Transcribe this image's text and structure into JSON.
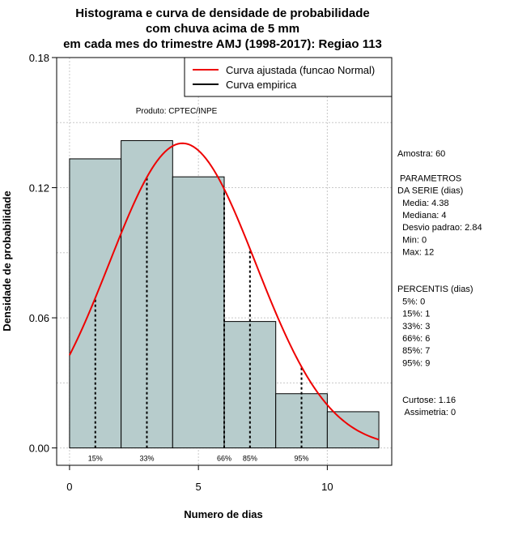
{
  "chart_data": {
    "type": "bar",
    "title_lines": [
      "Histograma e curva de densidade de probabilidade",
      "com chuva acima de 5 mm",
      "em cada mes do trimestre AMJ (1998-2017): Regiao 113"
    ],
    "xlabel": "Numero de dias",
    "ylabel": "Densidade de probabilidade",
    "xlim": [
      -0.5,
      12.5
    ],
    "ylim": [
      -0.008,
      0.18
    ],
    "x_ticks": [
      0,
      5,
      10
    ],
    "y_ticks": [
      0.0,
      0.06,
      0.12,
      0.18
    ],
    "y_tick_labels": [
      "0.00",
      "0.06",
      "0.12",
      "0.18"
    ],
    "grid": true,
    "bins": [
      {
        "x0": 0,
        "x1": 2,
        "density": 0.1333
      },
      {
        "x0": 2,
        "x1": 4,
        "density": 0.1417
      },
      {
        "x0": 4,
        "x1": 6,
        "density": 0.125
      },
      {
        "x0": 6,
        "x1": 8,
        "density": 0.0583
      },
      {
        "x0": 8,
        "x1": 10,
        "density": 0.025
      },
      {
        "x0": 10,
        "x1": 12,
        "density": 0.0167
      }
    ],
    "bar_color": "#b7cccc",
    "normal_curve": {
      "mean": 4.38,
      "sd": 2.84,
      "x_range": [
        0,
        12
      ],
      "color": "#ee0000"
    },
    "percentile_lines": [
      {
        "label": "15%",
        "x": 1
      },
      {
        "label": "33%",
        "x": 3
      },
      {
        "label": "66%",
        "x": 6
      },
      {
        "label": "85%",
        "x": 7
      },
      {
        "label": "95%",
        "x": 9
      }
    ],
    "legend": {
      "position": "top-right",
      "entries": [
        {
          "label": "Curva ajustada (funcao Normal)",
          "color": "#ee0000"
        },
        {
          "label": "Curva empirica",
          "color": "#000000"
        }
      ]
    },
    "annotation": "Produto: CPTEC/INPE"
  },
  "side_panel": {
    "lines": [
      "Amostra: 60",
      "",
      " PARAMETROS",
      "DA SERIE (dias)",
      "  Media: 4.38",
      "  Mediana: 4",
      "  Desvio padrao: 2.84",
      "  Min: 0",
      "  Max: 12",
      "",
      "",
      "PERCENTIS (dias)",
      "  5%: 0",
      "  15%: 1",
      "  33%: 3",
      "  66%: 6",
      "  85%: 7",
      "  95%: 9",
      "",
      "",
      "  Curtose: 1.16",
      "   Assimetria: 0"
    ]
  }
}
